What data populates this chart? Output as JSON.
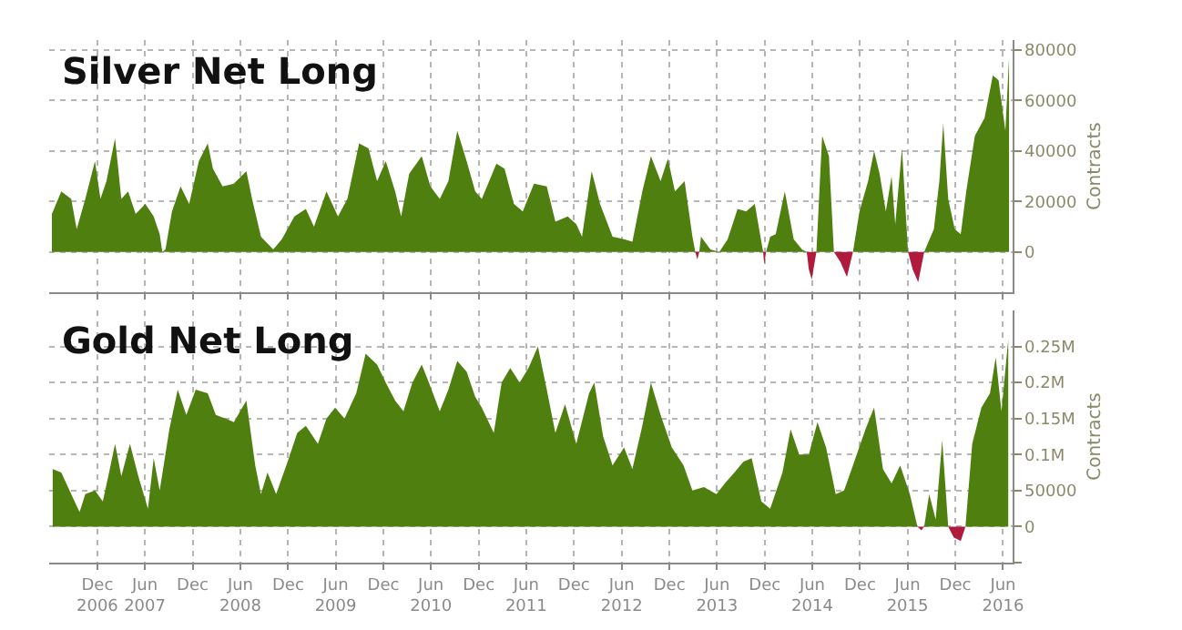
{
  "chart_data": [
    {
      "type": "area",
      "title": "Silver Net Long",
      "ylabel": "Contracts",
      "tick_labels": "y",
      "grid": true,
      "x": [
        "2006-06-24",
        "2006-07-30",
        "2006-09-06",
        "2006-09-27",
        "2006-10-30",
        "2006-12-06",
        "2006-12-27",
        "2007-01-19",
        "2007-02-21",
        "2007-03-17",
        "2007-04-12",
        "2007-05-11",
        "2007-06-17",
        "2007-07-19",
        "2007-08-11",
        "2007-08-21",
        "2007-09-02",
        "2007-09-27",
        "2007-10-30",
        "2007-12-02",
        "2008-01-08",
        "2008-02-11",
        "2008-03-02",
        "2008-04-08",
        "2008-05-21",
        "2008-07-08",
        "2008-07-30",
        "2008-09-02",
        "2008-10-19",
        "2008-11-21",
        "2009-01-08",
        "2009-02-21",
        "2009-03-24",
        "2009-05-11",
        "2009-06-24",
        "2009-07-30",
        "2009-09-13",
        "2009-10-19",
        "2009-11-21",
        "2009-12-24",
        "2010-01-29",
        "2010-02-21",
        "2010-03-24",
        "2010-05-11",
        "2010-06-13",
        "2010-07-19",
        "2010-08-21",
        "2010-09-24",
        "2010-10-30",
        "2010-12-02",
        "2010-12-27",
        "2011-02-21",
        "2011-03-24",
        "2011-04-29",
        "2011-06-02",
        "2011-07-15",
        "2011-09-02",
        "2011-10-05",
        "2011-11-21",
        "2011-12-24",
        "2012-01-15",
        "2012-02-21",
        "2012-03-24",
        "2012-05-11",
        "2012-06-24",
        "2012-07-26",
        "2012-09-02",
        "2012-10-05",
        "2012-11-11",
        "2012-12-09",
        "2013-01-05",
        "2013-02-11",
        "2013-03-13",
        "2013-03-24",
        "2013-04-01",
        "2013-04-08",
        "2013-04-15",
        "2013-05-21",
        "2013-06-24",
        "2013-07-26",
        "2013-09-02",
        "2013-10-05",
        "2013-11-07",
        "2013-12-02",
        "2013-12-09",
        "2013-12-13",
        "2013-12-20",
        "2014-01-05",
        "2014-01-26",
        "2014-03-02",
        "2014-04-05",
        "2014-05-07",
        "2014-05-25",
        "2014-06-02",
        "2014-06-13",
        "2014-07-01",
        "2014-07-23",
        "2014-08-18",
        "2014-09-06",
        "2014-10-01",
        "2014-10-26",
        "2014-11-18",
        "2014-12-13",
        "2015-01-15",
        "2015-02-07",
        "2015-02-28",
        "2015-03-24",
        "2015-04-15",
        "2015-04-29",
        "2015-05-25",
        "2015-06-17",
        "2015-07-05",
        "2015-07-26",
        "2015-08-18",
        "2015-09-24",
        "2015-10-15",
        "2015-10-30",
        "2015-11-18",
        "2015-12-13",
        "2016-01-05",
        "2016-01-26",
        "2016-02-28",
        "2016-04-05",
        "2016-05-07",
        "2016-05-29",
        "2016-06-24",
        "2016-07-08"
      ],
      "series": [
        {
          "color": "#4f7f0f",
          "values": [
            15000,
            24000,
            21000,
            9000,
            21000,
            36000,
            21000,
            28000,
            45000,
            21000,
            24000,
            15000,
            19000,
            14000,
            7000,
            0,
            1000,
            16000,
            26000,
            19000,
            36000,
            43000,
            33000,
            26000,
            27000,
            32000,
            21000,
            6000,
            1000,
            5000,
            14000,
            17000,
            10000,
            24000,
            14000,
            21000,
            43000,
            41000,
            28000,
            36000,
            24000,
            14000,
            31000,
            38000,
            26000,
            21000,
            28000,
            48000,
            36000,
            24000,
            21000,
            35000,
            33000,
            19000,
            16000,
            27000,
            26000,
            12000,
            14000,
            11000,
            6000,
            32000,
            19000,
            6000,
            5000,
            4000,
            24000,
            38000,
            28000,
            37000,
            24000,
            28000,
            6000,
            0,
            null,
            0,
            6000,
            1000,
            0,
            5000,
            17000,
            16000,
            19000,
            4000,
            0,
            null,
            0,
            6000,
            7000,
            24000,
            5000,
            1000,
            0,
            null,
            null,
            0,
            46000,
            38000,
            0,
            null,
            null,
            0,
            16000,
            28000,
            40000,
            31000,
            16000,
            30000,
            11000,
            41000,
            0,
            null,
            null,
            0,
            9000,
            28000,
            51000,
            21000,
            9000,
            7000,
            24000,
            46000,
            53000,
            70000,
            68000,
            48000,
            77000
          ]
        },
        {
          "color": "#b01a3c",
          "values": [
            null,
            null,
            null,
            null,
            null,
            null,
            null,
            null,
            null,
            null,
            null,
            null,
            null,
            null,
            null,
            null,
            null,
            null,
            null,
            null,
            null,
            null,
            null,
            null,
            null,
            null,
            null,
            null,
            null,
            null,
            null,
            null,
            null,
            null,
            null,
            null,
            null,
            null,
            null,
            null,
            null,
            null,
            null,
            null,
            null,
            null,
            null,
            null,
            null,
            null,
            null,
            null,
            null,
            null,
            null,
            null,
            null,
            null,
            null,
            null,
            null,
            null,
            null,
            null,
            null,
            null,
            null,
            null,
            null,
            null,
            null,
            null,
            null,
            0,
            -3000,
            0,
            null,
            null,
            null,
            null,
            null,
            null,
            null,
            null,
            0,
            -5000,
            0,
            null,
            null,
            null,
            null,
            null,
            0,
            -7000,
            -11000,
            0,
            null,
            null,
            0,
            -4000,
            -10000,
            0,
            null,
            null,
            null,
            null,
            null,
            null,
            null,
            null,
            0,
            -7000,
            -12000,
            0,
            null,
            null,
            null,
            null,
            null,
            null,
            null,
            null,
            null,
            null,
            null,
            null,
            null
          ]
        }
      ],
      "xlim": [
        "2006-06-12",
        "2016-07-20"
      ],
      "ylim": [
        -16000,
        84000
      ],
      "yticks": [
        0,
        20000,
        40000,
        60000,
        80000
      ],
      "xticks": [
        {
          "value": "2006-12-15",
          "label": null
        },
        {
          "value": "2007-06-15",
          "label": null
        },
        {
          "value": "2007-12-15",
          "label": null
        },
        {
          "value": "2008-06-15",
          "label": null
        },
        {
          "value": "2008-12-15",
          "label": null
        },
        {
          "value": "2009-06-15",
          "label": null
        },
        {
          "value": "2009-12-15",
          "label": null
        },
        {
          "value": "2010-06-15",
          "label": null
        },
        {
          "value": "2010-12-15",
          "label": null
        },
        {
          "value": "2011-06-15",
          "label": null
        },
        {
          "value": "2011-12-15",
          "label": null
        },
        {
          "value": "2012-06-15",
          "label": null
        },
        {
          "value": "2012-12-15",
          "label": null
        },
        {
          "value": "2013-06-15",
          "label": null
        },
        {
          "value": "2013-12-15",
          "label": null
        },
        {
          "value": "2014-06-15",
          "label": null
        },
        {
          "value": "2014-12-15",
          "label": null
        },
        {
          "value": "2015-06-15",
          "label": null
        },
        {
          "value": "2015-12-15",
          "label": null
        },
        {
          "value": "2016-06-15",
          "label": null
        }
      ]
    },
    {
      "type": "area",
      "title": "Gold Net Long",
      "ylabel": "Contracts",
      "grid": true,
      "x": [
        "2006-06-27",
        "2006-07-30",
        "2006-09-06",
        "2006-10-08",
        "2006-10-30",
        "2006-12-06",
        "2007-01-05",
        "2007-01-29",
        "2007-02-21",
        "2007-03-17",
        "2007-04-19",
        "2007-05-21",
        "2007-06-27",
        "2007-07-19",
        "2007-08-11",
        "2007-09-17",
        "2007-10-19",
        "2007-11-21",
        "2007-12-27",
        "2008-02-11",
        "2008-03-13",
        "2008-04-19",
        "2008-05-21",
        "2008-07-08",
        "2008-08-11",
        "2008-09-02",
        "2008-09-27",
        "2008-10-30",
        "2008-12-13",
        "2009-01-19",
        "2009-02-21",
        "2009-04-08",
        "2009-05-11",
        "2009-06-13",
        "2009-07-19",
        "2009-09-02",
        "2009-10-08",
        "2009-11-21",
        "2009-12-24",
        "2010-01-29",
        "2010-03-02",
        "2010-04-05",
        "2010-05-11",
        "2010-06-02",
        "2010-07-19",
        "2010-08-21",
        "2010-09-24",
        "2010-10-30",
        "2010-12-02",
        "2010-12-27",
        "2011-02-11",
        "2011-03-13",
        "2011-04-15",
        "2011-05-21",
        "2011-06-24",
        "2011-07-30",
        "2011-09-02",
        "2011-10-05",
        "2011-11-11",
        "2011-12-24",
        "2012-02-11",
        "2012-03-02",
        "2012-04-05",
        "2012-05-11",
        "2012-06-24",
        "2012-07-26",
        "2012-09-02",
        "2012-10-05",
        "2012-11-11",
        "2012-12-24",
        "2013-02-07",
        "2013-03-13",
        "2013-04-26",
        "2013-06-13",
        "2013-07-15",
        "2013-08-21",
        "2013-09-24",
        "2013-10-26",
        "2013-12-02",
        "2014-01-05",
        "2014-02-21",
        "2014-03-24",
        "2014-04-26",
        "2014-06-02",
        "2014-07-05",
        "2014-08-07",
        "2014-09-13",
        "2014-10-15",
        "2014-11-18",
        "2015-01-05",
        "2015-02-07",
        "2015-03-13",
        "2015-04-15",
        "2015-05-18",
        "2015-06-24",
        "2015-07-23",
        "2015-08-07",
        "2015-08-18",
        "2015-09-06",
        "2015-10-01",
        "2015-10-26",
        "2015-11-18",
        "2015-12-09",
        "2016-01-05",
        "2016-01-23",
        "2016-02-18",
        "2016-03-24",
        "2016-04-26",
        "2016-05-18",
        "2016-06-09",
        "2016-07-05"
      ],
      "series": [
        {
          "color": "#4f7f0f",
          "values": [
            80000,
            75000,
            45000,
            20000,
            45000,
            50000,
            35000,
            75000,
            115000,
            70000,
            115000,
            70000,
            25000,
            95000,
            50000,
            135000,
            190000,
            155000,
            190000,
            185000,
            155000,
            150000,
            145000,
            175000,
            85000,
            45000,
            75000,
            45000,
            90000,
            130000,
            140000,
            115000,
            150000,
            165000,
            150000,
            185000,
            240000,
            225000,
            200000,
            175000,
            160000,
            200000,
            225000,
            205000,
            160000,
            190000,
            230000,
            215000,
            180000,
            165000,
            130000,
            200000,
            220000,
            200000,
            220000,
            250000,
            190000,
            130000,
            170000,
            115000,
            185000,
            200000,
            125000,
            85000,
            110000,
            80000,
            140000,
            200000,
            155000,
            110000,
            85000,
            50000,
            55000,
            45000,
            60000,
            75000,
            90000,
            95000,
            35000,
            25000,
            75000,
            135000,
            100000,
            100000,
            145000,
            110000,
            45000,
            50000,
            85000,
            135000,
            165000,
            80000,
            60000,
            85000,
            45000,
            0,
            null,
            0,
            45000,
            10000,
            120000,
            0,
            null,
            null,
            0,
            115000,
            165000,
            185000,
            235000,
            160000,
            260000
          ]
        },
        {
          "color": "#b01a3c",
          "values": [
            null,
            null,
            null,
            null,
            null,
            null,
            null,
            null,
            null,
            null,
            null,
            null,
            null,
            null,
            null,
            null,
            null,
            null,
            null,
            null,
            null,
            null,
            null,
            null,
            null,
            null,
            null,
            null,
            null,
            null,
            null,
            null,
            null,
            null,
            null,
            null,
            null,
            null,
            null,
            null,
            null,
            null,
            null,
            null,
            null,
            null,
            null,
            null,
            null,
            null,
            null,
            null,
            null,
            null,
            null,
            null,
            null,
            null,
            null,
            null,
            null,
            null,
            null,
            null,
            null,
            null,
            null,
            null,
            null,
            null,
            null,
            null,
            null,
            null,
            null,
            null,
            null,
            null,
            null,
            null,
            null,
            null,
            null,
            null,
            null,
            null,
            null,
            null,
            null,
            null,
            null,
            null,
            null,
            null,
            null,
            0,
            -5000,
            0,
            null,
            null,
            null,
            0,
            -15000,
            -20000,
            0,
            null,
            null,
            null,
            null,
            null,
            null
          ]
        }
      ],
      "xlim": [
        "2006-06-12",
        "2016-07-20"
      ],
      "ylim": [
        -50000,
        300000
      ],
      "yticks": [
        {
          "value": -50000,
          "label": null
        },
        0,
        50000,
        {
          "value": 100000,
          "label": "0.1M"
        },
        {
          "value": 150000,
          "label": "0.15M"
        },
        {
          "value": 200000,
          "label": "0.2M"
        },
        {
          "value": 250000,
          "label": "0.25M"
        }
      ],
      "xticks": [
        {
          "value": "2006-12-15",
          "label": "Dec\n2006"
        },
        {
          "value": "2007-06-15",
          "label": "Jun\n2007"
        },
        {
          "value": "2007-12-15",
          "label": "Dec"
        },
        {
          "value": "2008-06-15",
          "label": "Jun\n2008"
        },
        {
          "value": "2008-12-15",
          "label": "Dec"
        },
        {
          "value": "2009-06-15",
          "label": "Jun\n2009"
        },
        {
          "value": "2009-12-15",
          "label": "Dec"
        },
        {
          "value": "2010-06-15",
          "label": "Jun\n2010"
        },
        {
          "value": "2010-12-15",
          "label": "Dec"
        },
        {
          "value": "2011-06-15",
          "label": "Jun\n2011"
        },
        {
          "value": "2011-12-15",
          "label": "Dec"
        },
        {
          "value": "2012-06-15",
          "label": "Jun\n2012"
        },
        {
          "value": "2012-12-15",
          "label": "Dec"
        },
        {
          "value": "2013-06-15",
          "label": "Jun\n2013"
        },
        {
          "value": "2013-12-15",
          "label": "Dec"
        },
        {
          "value": "2014-06-15",
          "label": "Jun\n2014"
        },
        {
          "value": "2014-12-15",
          "label": "Dec"
        },
        {
          "value": "2015-06-15",
          "label": "Jun\n2015"
        },
        {
          "value": "2015-12-15",
          "label": "Dec"
        },
        {
          "value": "2016-06-15",
          "label": "Jun\n2016"
        }
      ]
    }
  ]
}
